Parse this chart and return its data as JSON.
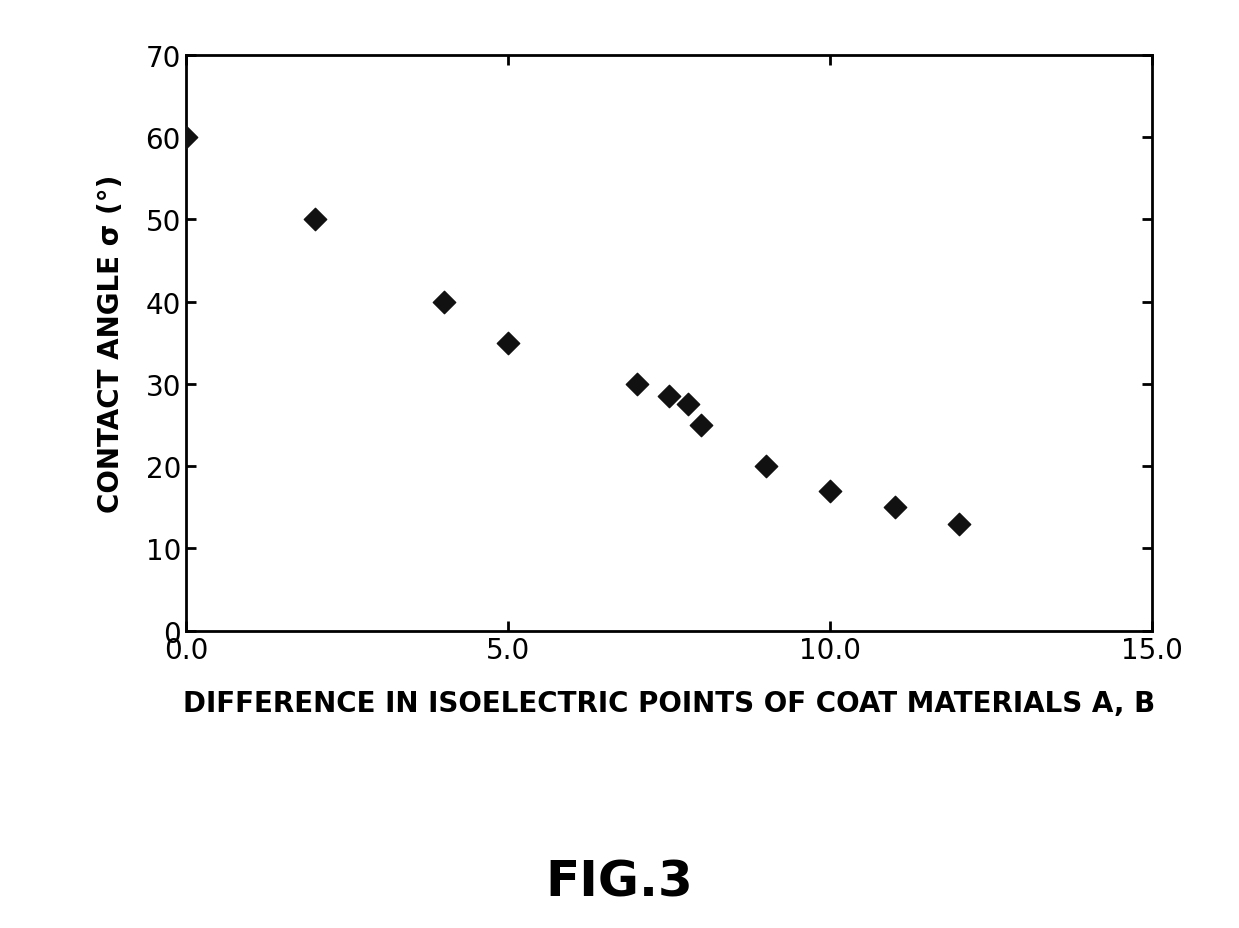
{
  "x": [
    0.0,
    2.0,
    4.0,
    5.0,
    7.0,
    7.5,
    7.8,
    8.0,
    9.0,
    10.0,
    11.0,
    12.0
  ],
  "y": [
    60,
    50,
    40,
    35,
    30,
    28.5,
    27.5,
    25,
    20,
    17,
    15,
    13
  ],
  "marker": "D",
  "marker_color": "#111111",
  "marker_size": 130,
  "xlabel": "DIFFERENCE IN ISOELECTRIC POINTS OF COAT MATERIALS A, B",
  "ylabel": "CONTACT ANGLE σ (°)",
  "fig_label": "FIG.3",
  "xlim": [
    0.0,
    15.0
  ],
  "ylim": [
    0,
    70
  ],
  "xticks": [
    0.0,
    5.0,
    10.0,
    15.0
  ],
  "yticks": [
    0,
    10,
    20,
    30,
    40,
    50,
    60,
    70
  ],
  "xlabel_fontsize": 20,
  "ylabel_fontsize": 20,
  "tick_fontsize": 20,
  "fig_label_fontsize": 36,
  "background_color": "#ffffff"
}
